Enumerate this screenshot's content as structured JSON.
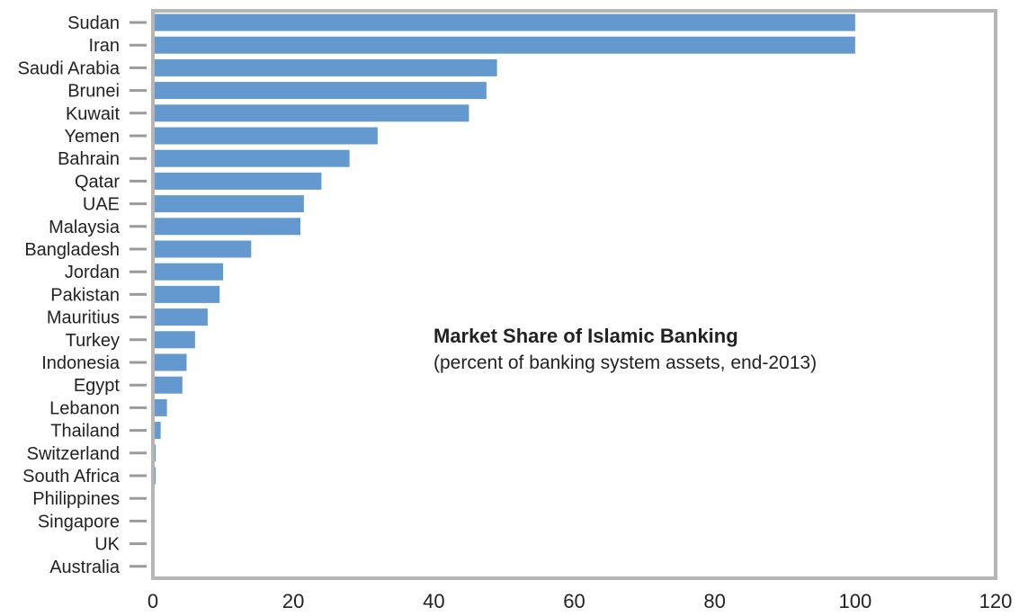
{
  "chart_data": {
    "type": "bar",
    "orientation": "horizontal",
    "title": "Market Share of Islamic Banking",
    "subtitle": "(percent of banking system assets, end-2013)",
    "xlabel": "",
    "ylabel": "",
    "xlim": [
      0,
      120
    ],
    "xticks": [
      "0",
      "20",
      "40",
      "60",
      "80",
      "100",
      "120"
    ],
    "grid": false,
    "categories": [
      "Sudan",
      "Iran",
      "Saudi Arabia",
      "Brunei",
      "Kuwait",
      "Yemen",
      "Bahrain",
      "Qatar",
      "UAE",
      "Malaysia",
      "Bangladesh",
      "Jordan",
      "Pakistan",
      "Mauritius",
      "Turkey",
      "Indonesia",
      "Egypt",
      "Lebanon",
      "Thailand",
      "Switzerland",
      "South Africa",
      "Philippines",
      "Singapore",
      "UK",
      "Australia"
    ],
    "values": [
      100,
      100,
      49,
      47.5,
      45,
      32,
      28,
      24,
      21.5,
      21,
      14,
      10,
      9.5,
      7.8,
      6,
      4.8,
      4.2,
      2,
      1.1,
      0.4,
      0.4,
      0.2,
      0.2,
      0.2,
      0.1
    ],
    "bar_color": "#6399cf",
    "frame_color": "#b5b5b5"
  }
}
